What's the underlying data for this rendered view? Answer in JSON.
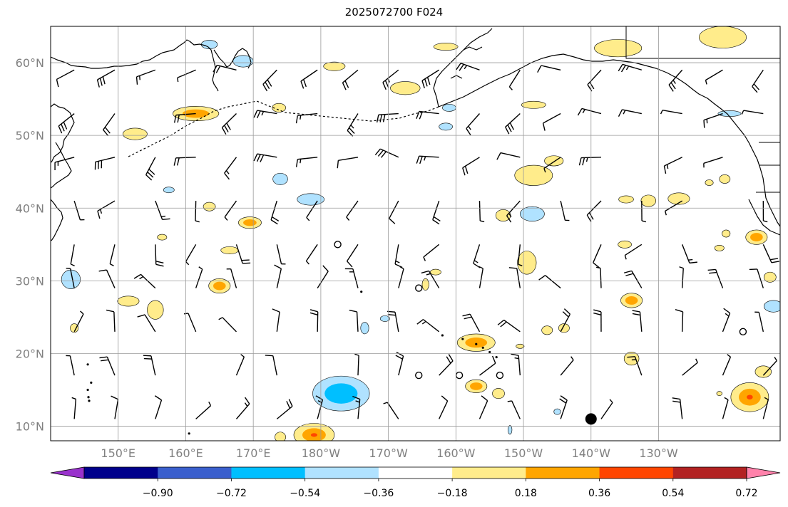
{
  "title": "2025072700 F024",
  "map": {
    "lon_range": [
      140,
      248
    ],
    "lat_range": [
      8,
      65
    ],
    "lat_ticks": [
      {
        "value": 10,
        "label": "10°N"
      },
      {
        "value": 20,
        "label": "20°N"
      },
      {
        "value": 30,
        "label": "30°N"
      },
      {
        "value": 40,
        "label": "40°N"
      },
      {
        "value": 50,
        "label": "50°N"
      },
      {
        "value": 60,
        "label": "60°N"
      }
    ],
    "lon_ticks": [
      {
        "value": 150,
        "label": "150°E"
      },
      {
        "value": 160,
        "label": "160°E"
      },
      {
        "value": 170,
        "label": "170°E"
      },
      {
        "value": 180,
        "label": "180°W"
      },
      {
        "value": 190,
        "label": "170°W"
      },
      {
        "value": 200,
        "label": "160°W"
      },
      {
        "value": 210,
        "label": "150°W"
      },
      {
        "value": 220,
        "label": "140°W"
      },
      {
        "value": 230,
        "label": "130°W"
      }
    ],
    "grid": true,
    "tick_label_color": "#808080",
    "marker": {
      "lon": 220,
      "lat": 11,
      "color": "#000000"
    }
  },
  "colorbar": {
    "levels": [
      -0.9,
      -0.72,
      -0.54,
      -0.36,
      -0.18,
      0.18,
      0.36,
      0.54,
      0.72,
      0.9
    ],
    "tick_labels": [
      "−0.90",
      "−0.72",
      "−0.54",
      "−0.36",
      "−0.18",
      "0.18",
      "0.36",
      "0.54",
      "0.72",
      "0.90"
    ],
    "colors": [
      "#9932cc",
      "#00008b",
      "#3a5fcd",
      "#00bfff",
      "#b0e2ff",
      "#ffffff",
      "#ffec8b",
      "#ffa500",
      "#ff4500",
      "#b22222",
      "#ff82ab"
    ],
    "extend": "both"
  },
  "contour_blobs": [
    {
      "lon": 161.5,
      "lat": 53,
      "rx": 3.4,
      "ry": 1.0,
      "level": 0.36
    },
    {
      "lon": 152.5,
      "lat": 50.2,
      "rx": 1.8,
      "ry": 0.8,
      "level": 0.18
    },
    {
      "lon": 163.5,
      "lat": 62.5,
      "rx": 1.2,
      "ry": 0.6,
      "level": -0.18
    },
    {
      "lon": 168.5,
      "lat": 60.2,
      "rx": 1.5,
      "ry": 0.8,
      "level": -0.18
    },
    {
      "lon": 182,
      "lat": 59.5,
      "rx": 1.6,
      "ry": 0.6,
      "level": 0.18
    },
    {
      "lon": 192.5,
      "lat": 56.5,
      "rx": 2.2,
      "ry": 0.9,
      "level": 0.18
    },
    {
      "lon": 198.5,
      "lat": 62.2,
      "rx": 1.8,
      "ry": 0.5,
      "level": 0.18
    },
    {
      "lon": 224,
      "lat": 62,
      "rx": 3.5,
      "ry": 1.2,
      "level": 0.18
    },
    {
      "lon": 239.5,
      "lat": 63.5,
      "rx": 3.5,
      "ry": 1.5,
      "level": 0.18
    },
    {
      "lon": 211.5,
      "lat": 54.2,
      "rx": 1.8,
      "ry": 0.5,
      "level": 0.18
    },
    {
      "lon": 173.8,
      "lat": 53.8,
      "rx": 1.0,
      "ry": 0.6,
      "level": 0.18
    },
    {
      "lon": 199,
      "lat": 53.8,
      "rx": 1.0,
      "ry": 0.5,
      "level": -0.18
    },
    {
      "lon": 198.5,
      "lat": 51.2,
      "rx": 1.0,
      "ry": 0.5,
      "level": -0.18
    },
    {
      "lon": 240.5,
      "lat": 53,
      "rx": 1.7,
      "ry": 0.4,
      "level": -0.18
    },
    {
      "lon": 211.5,
      "lat": 44.5,
      "rx": 2.8,
      "ry": 1.4,
      "level": 0.18
    },
    {
      "lon": 214.5,
      "lat": 46.5,
      "rx": 1.4,
      "ry": 0.7,
      "level": 0.18
    },
    {
      "lon": 174,
      "lat": 44,
      "rx": 1.1,
      "ry": 0.8,
      "level": -0.18
    },
    {
      "lon": 178.5,
      "lat": 41.2,
      "rx": 2.0,
      "ry": 0.8,
      "level": -0.18
    },
    {
      "lon": 157.5,
      "lat": 42.5,
      "rx": 0.8,
      "ry": 0.4,
      "level": -0.18
    },
    {
      "lon": 163.5,
      "lat": 40.2,
      "rx": 0.9,
      "ry": 0.6,
      "level": 0.18
    },
    {
      "lon": 169.5,
      "lat": 38,
      "rx": 1.7,
      "ry": 0.8,
      "level": 0.36
    },
    {
      "lon": 207,
      "lat": 39,
      "rx": 1.1,
      "ry": 0.8,
      "level": 0.18
    },
    {
      "lon": 211.3,
      "lat": 39.2,
      "rx": 1.8,
      "ry": 1.0,
      "level": -0.18
    },
    {
      "lon": 225.2,
      "lat": 41.2,
      "rx": 1.1,
      "ry": 0.5,
      "level": 0.18
    },
    {
      "lon": 228.5,
      "lat": 41,
      "rx": 1.1,
      "ry": 0.8,
      "level": 0.18
    },
    {
      "lon": 233,
      "lat": 41.3,
      "rx": 1.6,
      "ry": 0.8,
      "level": 0.18
    },
    {
      "lon": 237.5,
      "lat": 43.5,
      "rx": 0.6,
      "ry": 0.4,
      "level": 0.18
    },
    {
      "lon": 239.8,
      "lat": 44,
      "rx": 0.8,
      "ry": 0.6,
      "level": 0.18
    },
    {
      "lon": 240,
      "lat": 36.5,
      "rx": 0.6,
      "ry": 0.5,
      "level": 0.18
    },
    {
      "lon": 244.5,
      "lat": 36,
      "rx": 1.6,
      "ry": 1.0,
      "level": 0.36
    },
    {
      "lon": 166.5,
      "lat": 34.2,
      "rx": 1.3,
      "ry": 0.5,
      "level": 0.18
    },
    {
      "lon": 156.5,
      "lat": 36,
      "rx": 0.7,
      "ry": 0.4,
      "level": 0.18
    },
    {
      "lon": 210.5,
      "lat": 32.5,
      "rx": 1.4,
      "ry": 1.6,
      "level": 0.18
    },
    {
      "lon": 225,
      "lat": 35,
      "rx": 1.0,
      "ry": 0.5,
      "level": 0.18
    },
    {
      "lon": 239,
      "lat": 34.5,
      "rx": 0.7,
      "ry": 0.4,
      "level": 0.18
    },
    {
      "lon": 143,
      "lat": 30.2,
      "rx": 1.4,
      "ry": 1.3,
      "level": -0.18
    },
    {
      "lon": 155.5,
      "lat": 26,
      "rx": 1.2,
      "ry": 1.3,
      "level": 0.18
    },
    {
      "lon": 151.5,
      "lat": 27.2,
      "rx": 1.6,
      "ry": 0.7,
      "level": 0.18
    },
    {
      "lon": 165,
      "lat": 29.3,
      "rx": 1.6,
      "ry": 1.0,
      "level": 0.36
    },
    {
      "lon": 197,
      "lat": 31.2,
      "rx": 0.8,
      "ry": 0.4,
      "level": 0.18
    },
    {
      "lon": 195.5,
      "lat": 29.5,
      "rx": 0.5,
      "ry": 0.8,
      "level": 0.18
    },
    {
      "lon": 226,
      "lat": 27.3,
      "rx": 1.6,
      "ry": 1.0,
      "level": 0.36
    },
    {
      "lon": 247,
      "lat": 26.5,
      "rx": 1.4,
      "ry": 0.8,
      "level": -0.18
    },
    {
      "lon": 246.5,
      "lat": 30.5,
      "rx": 0.9,
      "ry": 0.7,
      "level": 0.18
    },
    {
      "lon": 203,
      "lat": 21.5,
      "rx": 2.8,
      "ry": 1.2,
      "level": 0.36
    },
    {
      "lon": 216,
      "lat": 23.5,
      "rx": 0.8,
      "ry": 0.6,
      "level": 0.18
    },
    {
      "lon": 213.5,
      "lat": 23.2,
      "rx": 0.8,
      "ry": 0.6,
      "level": 0.18
    },
    {
      "lon": 226,
      "lat": 19.3,
      "rx": 1.1,
      "ry": 0.9,
      "level": 0.18
    },
    {
      "lon": 209.5,
      "lat": 21,
      "rx": 0.6,
      "ry": 0.3,
      "level": 0.18
    },
    {
      "lon": 143.5,
      "lat": 23.5,
      "rx": 0.6,
      "ry": 0.6,
      "level": 0.18
    },
    {
      "lon": 186.5,
      "lat": 23.5,
      "rx": 0.6,
      "ry": 0.8,
      "level": -0.18
    },
    {
      "lon": 189.5,
      "lat": 24.8,
      "rx": 0.7,
      "ry": 0.4,
      "level": -0.18
    },
    {
      "lon": 183,
      "lat": 14.5,
      "rx": 4.2,
      "ry": 2.4,
      "level": -0.36
    },
    {
      "lon": 203,
      "lat": 15.5,
      "rx": 1.6,
      "ry": 0.9,
      "level": 0.36
    },
    {
      "lon": 206.3,
      "lat": 14.5,
      "rx": 0.9,
      "ry": 0.7,
      "level": 0.18
    },
    {
      "lon": 243.5,
      "lat": 14,
      "rx": 2.8,
      "ry": 2.0,
      "level": 0.54
    },
    {
      "lon": 245.5,
      "lat": 17.5,
      "rx": 1.2,
      "ry": 0.8,
      "level": 0.18
    },
    {
      "lon": 239,
      "lat": 14.5,
      "rx": 0.4,
      "ry": 0.3,
      "level": 0.18
    },
    {
      "lon": 179,
      "lat": 8.8,
      "rx": 3.0,
      "ry": 1.6,
      "level": 0.54
    },
    {
      "lon": 174,
      "lat": 8.5,
      "rx": 0.8,
      "ry": 0.7,
      "level": 0.18
    },
    {
      "lon": 215,
      "lat": 12,
      "rx": 0.5,
      "ry": 0.4,
      "level": -0.18
    },
    {
      "lon": 208,
      "lat": 9.5,
      "rx": 0.3,
      "ry": 0.6,
      "level": -0.18
    }
  ],
  "calm_circles": [
    {
      "lon": 182.5,
      "lat": 35
    },
    {
      "lon": 194.5,
      "lat": 29
    },
    {
      "lon": 194.5,
      "lat": 17
    },
    {
      "lon": 200.5,
      "lat": 17
    },
    {
      "lon": 206.5,
      "lat": 17
    },
    {
      "lon": 242.5,
      "lat": 23
    }
  ],
  "islands": [
    {
      "lon": 201,
      "lat": 22
    },
    {
      "lon": 203,
      "lat": 21.3
    },
    {
      "lon": 204,
      "lat": 20.8
    },
    {
      "lon": 205,
      "lat": 20.2
    },
    {
      "lon": 206,
      "lat": 19.5
    },
    {
      "lon": 198,
      "lat": 22.5
    },
    {
      "lon": 146,
      "lat": 16
    },
    {
      "lon": 145.5,
      "lat": 15
    },
    {
      "lon": 145.6,
      "lat": 14
    },
    {
      "lon": 145.7,
      "lat": 13.5
    },
    {
      "lon": 145.5,
      "lat": 18.5
    },
    {
      "lon": 186,
      "lat": 28.5
    },
    {
      "lon": 160.5,
      "lat": 9
    }
  ]
}
